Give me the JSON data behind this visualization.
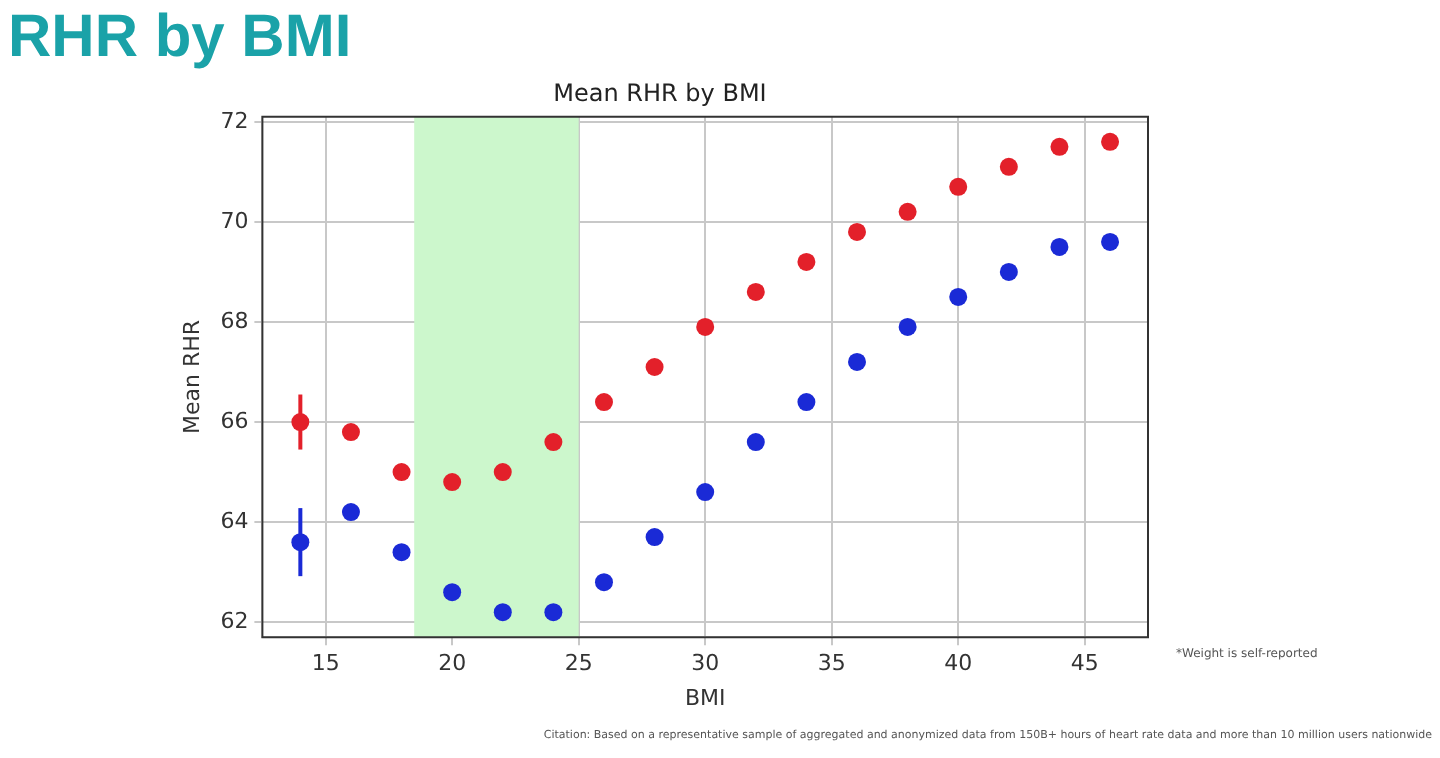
{
  "chart_data": {
    "type": "scatter",
    "title": "RHR by BMI",
    "subtitle": "Mean RHR by BMI",
    "xlabel": "BMI",
    "ylabel": "Mean RHR",
    "annotations": [
      "*Weight is self-reported",
      "Citation: Based on a representative sample of aggregated and anonymized data from 150B+ hours of heart rate data and more than 10 million users nationwide"
    ],
    "x": [
      14,
      16,
      18,
      20,
      22,
      24,
      26,
      28,
      30,
      32,
      34,
      36,
      38,
      40,
      42,
      44,
      46
    ],
    "series": [
      {
        "color": "#e3202a",
        "values": [
          66.0,
          65.8,
          65.0,
          64.8,
          65.0,
          65.6,
          66.4,
          67.1,
          67.9,
          68.6,
          69.2,
          69.8,
          70.2,
          70.7,
          71.1,
          71.5,
          71.6
        ],
        "errors": [
          0.55,
          null,
          null,
          null,
          null,
          null,
          null,
          null,
          null,
          null,
          null,
          null,
          null,
          null,
          null,
          null,
          null
        ]
      },
      {
        "color": "#1a2ad6",
        "values": [
          63.6,
          64.2,
          63.4,
          62.6,
          62.2,
          62.2,
          62.8,
          63.7,
          64.6,
          65.6,
          66.4,
          67.2,
          67.9,
          68.5,
          69.0,
          69.5,
          69.6
        ],
        "errors": [
          0.68,
          null,
          null,
          null,
          null,
          null,
          null,
          null,
          null,
          null,
          null,
          null,
          null,
          null,
          null,
          null,
          null
        ]
      }
    ],
    "bands": [
      {
        "axis": "x",
        "from": 18.5,
        "to": 25,
        "color": "#ccf7cc"
      }
    ],
    "xlim": [
      12.5,
      47.5
    ],
    "xticks": [
      15,
      20,
      25,
      30,
      35,
      40,
      45
    ],
    "ylim": [
      61.7,
      72.1
    ],
    "yticks": [
      62,
      64,
      66,
      68,
      70,
      72
    ],
    "grid": true,
    "marker": "circle"
  }
}
